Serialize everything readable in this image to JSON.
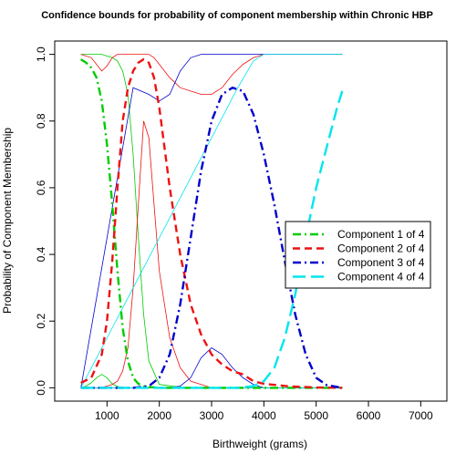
{
  "chart_data": {
    "type": "line",
    "title": "Confidence bounds for probability of component membership within Chronic HBP",
    "xlabel": "Birthweight (grams)",
    "ylabel": "Probability of Component Membership",
    "xlim": [
      0,
      7500
    ],
    "ylim": [
      -0.04,
      1.04
    ],
    "xticks": [
      1000,
      2000,
      3000,
      4000,
      5000,
      6000,
      7000
    ],
    "yticks": [
      0.0,
      0.2,
      0.4,
      0.6,
      0.8,
      1.0
    ],
    "xtick_labels": [
      "1000",
      "2000",
      "3000",
      "4000",
      "5000",
      "6000",
      "7000"
    ],
    "ytick_labels": [
      "0.0",
      "0.2",
      "0.4",
      "0.6",
      "0.8",
      "1.0"
    ],
    "legend_position": "right",
    "series": [
      {
        "name": "Component 1 of 4",
        "color": "#00cc00",
        "dash": "dotdash",
        "x": [
          500,
          600,
          700,
          800,
          900,
          1000,
          1100,
          1200,
          1300,
          1400,
          1500,
          1600,
          1700,
          1800,
          2000,
          2500,
          3000,
          4000,
          5500
        ],
        "y": [
          0.985,
          0.975,
          0.96,
          0.93,
          0.86,
          0.73,
          0.55,
          0.35,
          0.18,
          0.08,
          0.03,
          0.012,
          0.005,
          0.002,
          0.0,
          0.0,
          0.0,
          0.0,
          0.0
        ],
        "lower": [
          0.0,
          0.005,
          0.015,
          0.03,
          0.04,
          0.03,
          0.012,
          0.004,
          0.0,
          0.0,
          0.0,
          0.0,
          0.0,
          0.0,
          0.0,
          0.0,
          0.0,
          0.0,
          0.0
        ],
        "upper": [
          1.0,
          1.0,
          1.0,
          1.0,
          1.0,
          0.995,
          0.99,
          0.98,
          0.95,
          0.88,
          0.7,
          0.45,
          0.22,
          0.08,
          0.01,
          0.0,
          0.0,
          0.0,
          0.0
        ]
      },
      {
        "name": "Component 2 of 4",
        "color": "#ee1111",
        "dash": "dashed",
        "x": [
          500,
          700,
          900,
          1000,
          1100,
          1200,
          1300,
          1400,
          1500,
          1600,
          1700,
          1800,
          1900,
          2000,
          2200,
          2400,
          2600,
          2800,
          3000,
          3200,
          3400,
          3600,
          3800,
          4000,
          4500,
          5000,
          5500
        ],
        "y": [
          0.015,
          0.03,
          0.1,
          0.2,
          0.38,
          0.6,
          0.8,
          0.9,
          0.95,
          0.975,
          0.985,
          0.975,
          0.93,
          0.84,
          0.6,
          0.4,
          0.25,
          0.16,
          0.1,
          0.07,
          0.05,
          0.04,
          0.02,
          0.012,
          0.004,
          0.001,
          0.0
        ],
        "lower": [
          0.0,
          0.0,
          0.0,
          0.005,
          0.01,
          0.02,
          0.05,
          0.12,
          0.3,
          0.55,
          0.8,
          0.75,
          0.55,
          0.35,
          0.15,
          0.06,
          0.02,
          0.01,
          0.0,
          0.0,
          0.0,
          0.0,
          0.0,
          0.0,
          0.0,
          0.0,
          0.0
        ],
        "upper": [
          1.0,
          0.99,
          0.95,
          0.965,
          0.99,
          1.0,
          1.0,
          1.0,
          1.0,
          1.0,
          1.0,
          1.0,
          0.99,
          0.97,
          0.93,
          0.9,
          0.89,
          0.88,
          0.88,
          0.9,
          0.94,
          0.97,
          0.99,
          1.0,
          1.0,
          1.0,
          1.0
        ]
      },
      {
        "name": "Component 3 of 4",
        "color": "#0000cc",
        "dash": "dotdash",
        "x": [
          500,
          1500,
          1800,
          2000,
          2200,
          2400,
          2600,
          2800,
          3000,
          3200,
          3400,
          3600,
          3800,
          4000,
          4200,
          4400,
          4600,
          4800,
          5000,
          5200,
          5500
        ],
        "y": [
          0.0,
          0.0,
          0.005,
          0.03,
          0.1,
          0.25,
          0.45,
          0.65,
          0.8,
          0.88,
          0.9,
          0.89,
          0.82,
          0.7,
          0.55,
          0.38,
          0.22,
          0.1,
          0.03,
          0.008,
          0.0
        ],
        "lower": [
          0.0,
          0.0,
          0.0,
          0.0,
          0.0,
          0.005,
          0.03,
          0.09,
          0.12,
          0.1,
          0.06,
          0.03,
          0.01,
          0.0,
          0.0,
          0.0,
          0.0,
          0.0,
          0.0,
          0.0,
          0.0
        ],
        "upper": [
          0.0,
          0.9,
          0.88,
          0.86,
          0.88,
          0.95,
          0.99,
          1.0,
          1.0,
          1.0,
          1.0,
          1.0,
          1.0,
          1.0,
          1.0,
          1.0,
          1.0,
          1.0,
          1.0,
          1.0,
          1.0
        ]
      },
      {
        "name": "Component 4 of 4",
        "color": "#00e5ee",
        "dash": "longdash",
        "x": [
          500,
          3500,
          3800,
          4000,
          4200,
          4400,
          4600,
          4800,
          5000,
          5200,
          5400,
          5500
        ],
        "y": [
          0.0,
          0.0,
          0.005,
          0.02,
          0.06,
          0.15,
          0.28,
          0.45,
          0.6,
          0.72,
          0.84,
          0.89
        ],
        "lower": [
          0.0,
          0.0,
          0.0,
          0.0,
          0.0,
          0.0,
          0.0,
          0.0,
          0.0,
          0.0,
          0.0,
          0.0
        ],
        "upper": [
          0.0,
          0.9,
          0.98,
          1.0,
          1.0,
          1.0,
          1.0,
          1.0,
          1.0,
          1.0,
          1.0,
          1.0
        ]
      }
    ]
  }
}
